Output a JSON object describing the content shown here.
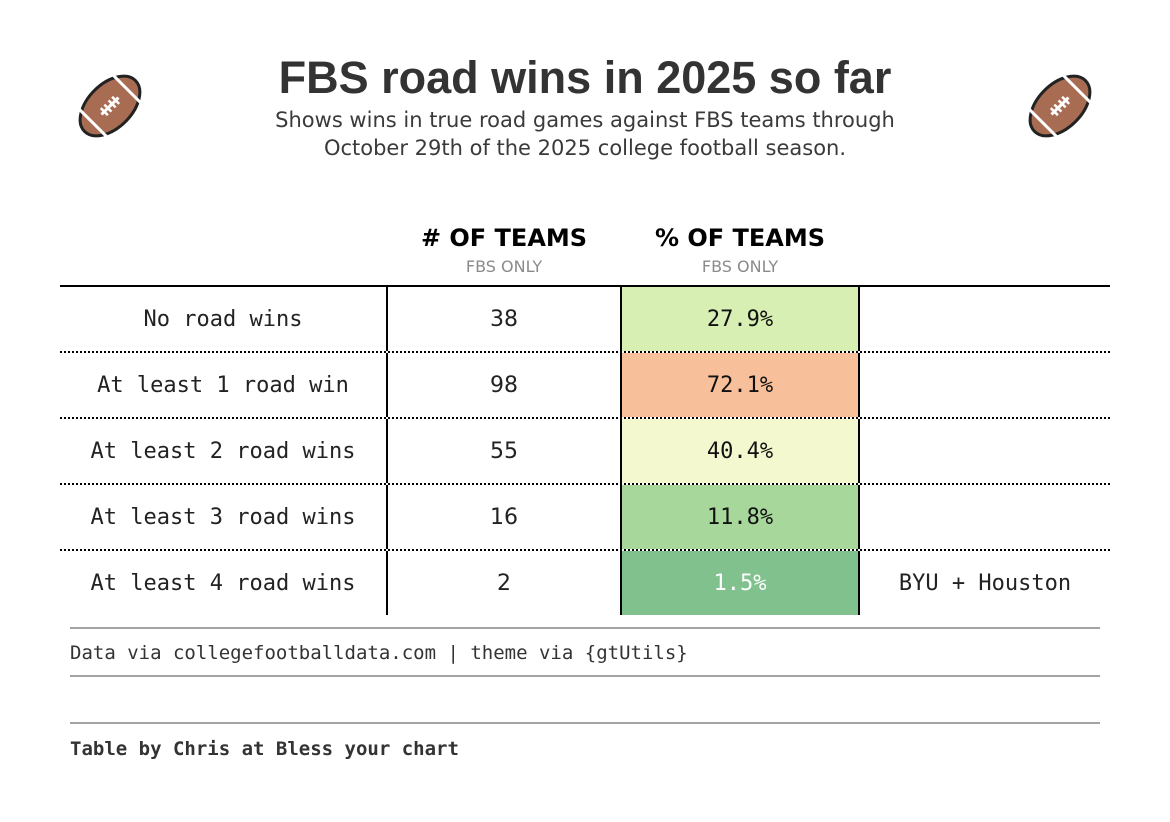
{
  "title": "FBS road wins in 2025 so far",
  "subtitle": "Shows wins in true road games against FBS teams through October 29th of the 2025 college football season.",
  "icons": {
    "left": "football-icon",
    "right": "football-icon"
  },
  "columns": {
    "count": {
      "label": "# OF TEAMS",
      "sub": "FBS ONLY"
    },
    "pct": {
      "label": "% OF TEAMS",
      "sub": "FBS ONLY"
    }
  },
  "chart_data": {
    "type": "table",
    "columns": [
      "",
      "# OF TEAMS",
      "% OF TEAMS",
      ""
    ],
    "rows": [
      {
        "label": "No road wins",
        "count": "38",
        "pct": "27.9%",
        "note": "",
        "color": "#d7efb3",
        "text_color": "#111111"
      },
      {
        "label": "At least 1 road win",
        "count": "98",
        "pct": "72.1%",
        "note": "",
        "color": "#f8c09a",
        "text_color": "#111111"
      },
      {
        "label": "At least 2 road wins",
        "count": "55",
        "pct": "40.4%",
        "note": "",
        "color": "#f4f8cf",
        "text_color": "#111111"
      },
      {
        "label": "At least 3 road wins",
        "count": "16",
        "pct": "11.8%",
        "note": "",
        "color": "#a7d79a",
        "text_color": "#111111"
      },
      {
        "label": "At least 4 road wins",
        "count": "2",
        "pct": "1.5%",
        "note": "BYU + Houston",
        "color": "#80c18e",
        "text_color": "#ffffff"
      }
    ]
  },
  "footer": {
    "source": "Data via collegefootballdata.com | theme via {gtUtils}",
    "credit": "Table by Chris at Bless your chart"
  }
}
